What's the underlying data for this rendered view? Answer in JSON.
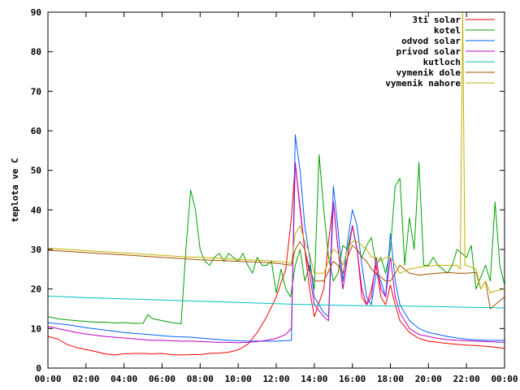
{
  "chart_data": {
    "type": "line",
    "title": "",
    "xlabel": "",
    "ylabel": "teplota ve C",
    "ylim": [
      0,
      90
    ],
    "xlim": [
      "00:00",
      "24:00"
    ],
    "yticks": [
      0,
      10,
      20,
      30,
      40,
      50,
      60,
      70,
      80,
      90
    ],
    "xtick_labels": [
      "00:00",
      "02:00",
      "04:00",
      "06:00",
      "08:00",
      "10:00",
      "12:00",
      "14:00",
      "16:00",
      "18:00",
      "20:00",
      "22:00",
      "00:00"
    ],
    "grid": false,
    "legend_position": "top-right",
    "series": [
      {
        "name": "3ti solar",
        "color": "#ff0000",
        "x": [
          "00:00",
          "00:30",
          "01:00",
          "01:30",
          "02:00",
          "02:30",
          "03:00",
          "03:30",
          "04:00",
          "04:30",
          "05:00",
          "05:30",
          "06:00",
          "06:30",
          "07:00",
          "07:30",
          "08:00",
          "08:30",
          "09:00",
          "09:30",
          "10:00",
          "10:30",
          "11:00",
          "11:30",
          "12:00",
          "12:30",
          "12:48",
          "13:00",
          "13:12",
          "13:30",
          "13:45",
          "14:00",
          "14:30",
          "14:45",
          "15:00",
          "15:15",
          "15:30",
          "15:45",
          "16:00",
          "16:15",
          "16:30",
          "16:45",
          "17:00",
          "17:15",
          "17:30",
          "17:45",
          "18:00",
          "18:15",
          "18:30",
          "19:00",
          "19:30",
          "20:00",
          "20:30",
          "21:00",
          "21:30",
          "22:00",
          "22:30",
          "23:00",
          "23:30",
          "24:00"
        ],
        "y": [
          8,
          7.4,
          6,
          5.2,
          4.7,
          4.2,
          3.6,
          3.3,
          3.6,
          3.7,
          3.7,
          3.6,
          3.7,
          3.4,
          3.3,
          3.4,
          3.4,
          3.7,
          3.8,
          4,
          4.6,
          6,
          9,
          13,
          18,
          25,
          38,
          52,
          43,
          30,
          20,
          13,
          20,
          32,
          42,
          30,
          20,
          28,
          36,
          30,
          18,
          16,
          20,
          26,
          18,
          16,
          21,
          16,
          12,
          9,
          7.5,
          6.8,
          6.5,
          6.2,
          6,
          5.8,
          5.7,
          5.5,
          5.3,
          5
        ]
      },
      {
        "name": "kotel",
        "color": "#00a000",
        "x": [
          "00:00",
          "00:30",
          "01:00",
          "01:30",
          "02:00",
          "02:30",
          "03:00",
          "03:30",
          "04:00",
          "04:30",
          "05:00",
          "05:15",
          "05:30",
          "06:00",
          "06:30",
          "07:00",
          "07:15",
          "07:30",
          "07:45",
          "08:00",
          "08:15",
          "08:30",
          "08:45",
          "09:00",
          "09:15",
          "09:30",
          "09:45",
          "10:00",
          "10:15",
          "10:30",
          "10:45",
          "11:00",
          "11:15",
          "11:30",
          "11:45",
          "12:00",
          "12:15",
          "12:30",
          "12:45",
          "13:00",
          "13:15",
          "13:30",
          "13:45",
          "14:00",
          "14:15",
          "14:30",
          "14:45",
          "15:00",
          "15:15",
          "15:30",
          "15:45",
          "16:00",
          "16:15",
          "16:30",
          "16:45",
          "17:00",
          "17:15",
          "17:30",
          "17:45",
          "18:00",
          "18:15",
          "18:30",
          "18:45",
          "19:00",
          "19:15",
          "19:30",
          "19:45",
          "20:00",
          "20:15",
          "20:30",
          "20:45",
          "21:00",
          "21:15",
          "21:30",
          "21:45",
          "22:00",
          "22:15",
          "22:30",
          "22:45",
          "23:00",
          "23:15",
          "23:30",
          "23:45",
          "24:00"
        ],
        "y": [
          13,
          12.5,
          12.2,
          12,
          11.8,
          11.6,
          11.6,
          11.4,
          11.5,
          11.3,
          11.3,
          13.5,
          12.5,
          12,
          11.5,
          11.2,
          30,
          45,
          40,
          30,
          27,
          26,
          28,
          29,
          27,
          29,
          28,
          27,
          29,
          26,
          24,
          28,
          26,
          26,
          27,
          19,
          25,
          20,
          18,
          26,
          30,
          22,
          26,
          20,
          54,
          40,
          28,
          22,
          24,
          31,
          30,
          36,
          30,
          28,
          31,
          33,
          26,
          28,
          24,
          30,
          46,
          48,
          26,
          38,
          30,
          52,
          26,
          26,
          28,
          26,
          25,
          24,
          26,
          30,
          29,
          28,
          31,
          20,
          23,
          26,
          22,
          42,
          26,
          21
        ]
      },
      {
        "name": "odvod solar",
        "color": "#0060ff",
        "x": [
          "00:00",
          "00:30",
          "01:00",
          "01:30",
          "02:00",
          "02:30",
          "03:00",
          "03:30",
          "04:00",
          "04:30",
          "05:00",
          "05:30",
          "06:00",
          "06:30",
          "07:00",
          "07:30",
          "08:00",
          "08:30",
          "09:00",
          "09:30",
          "10:00",
          "10:30",
          "11:00",
          "11:30",
          "12:00",
          "12:30",
          "12:48",
          "13:00",
          "13:15",
          "13:30",
          "13:45",
          "14:00",
          "14:30",
          "14:45",
          "15:00",
          "15:15",
          "15:30",
          "15:45",
          "16:00",
          "16:15",
          "16:30",
          "16:45",
          "17:00",
          "17:15",
          "17:30",
          "17:45",
          "18:00",
          "18:15",
          "18:30",
          "19:00",
          "19:30",
          "20:00",
          "20:30",
          "21:00",
          "21:30",
          "22:00",
          "22:30",
          "23:00",
          "23:30",
          "24:00"
        ],
        "y": [
          11.5,
          11.2,
          11,
          10.6,
          10.2,
          9.9,
          9.6,
          9.3,
          9,
          8.8,
          8.6,
          8.4,
          8.2,
          8,
          7.9,
          7.8,
          7.6,
          7.4,
          7.2,
          7,
          6.9,
          6.8,
          6.8,
          6.8,
          6.8,
          6.9,
          7,
          59,
          50,
          36,
          28,
          18,
          14,
          13,
          46,
          35,
          22,
          32,
          40,
          36,
          26,
          18,
          16,
          24,
          22,
          18,
          34,
          22,
          16,
          12,
          10,
          9,
          8.5,
          8,
          7.6,
          7.3,
          7.1,
          7,
          7,
          7
        ]
      },
      {
        "name": "privod solar",
        "color": "#c000c0",
        "x": [
          "00:00",
          "00:30",
          "01:00",
          "01:30",
          "02:00",
          "02:30",
          "03:00",
          "03:30",
          "04:00",
          "04:30",
          "05:00",
          "05:30",
          "06:00",
          "06:30",
          "07:00",
          "07:30",
          "08:00",
          "08:30",
          "09:00",
          "09:30",
          "10:00",
          "10:30",
          "11:00",
          "11:30",
          "12:00",
          "12:30",
          "12:48",
          "13:00",
          "13:15",
          "13:30",
          "13:45",
          "14:00",
          "14:30",
          "14:45",
          "15:00",
          "15:15",
          "15:30",
          "15:45",
          "16:00",
          "16:15",
          "16:30",
          "16:45",
          "17:00",
          "17:15",
          "17:30",
          "17:45",
          "18:00",
          "18:15",
          "18:30",
          "19:00",
          "19:30",
          "20:00",
          "20:30",
          "21:00",
          "21:30",
          "22:00",
          "22:30",
          "23:00",
          "23:30",
          "24:00"
        ],
        "y": [
          10.5,
          10,
          9.5,
          9,
          8.6,
          8.3,
          8,
          7.8,
          7.6,
          7.4,
          7.2,
          7,
          7,
          6.9,
          6.8,
          6.8,
          6.7,
          6.6,
          6.5,
          6.5,
          6.4,
          6.5,
          6.7,
          7,
          7.5,
          8.5,
          10,
          52,
          40,
          30,
          24,
          16,
          13,
          12,
          42,
          30,
          20,
          28,
          36,
          30,
          20,
          16,
          18,
          28,
          20,
          18,
          28,
          18,
          14,
          10,
          8.5,
          8,
          7.5,
          7.2,
          7,
          6.9,
          6.8,
          6.7,
          6.6,
          6.5
        ]
      },
      {
        "name": "kutloch",
        "color": "#00c0c0",
        "x": [
          "00:00",
          "02:00",
          "04:00",
          "06:00",
          "08:00",
          "10:00",
          "12:00",
          "14:00",
          "16:00",
          "18:00",
          "20:00",
          "22:00",
          "24:00"
        ],
        "y": [
          18.2,
          17.8,
          17.5,
          17.2,
          16.9,
          16.6,
          16.3,
          16,
          15.8,
          15.7,
          15.6,
          15.4,
          15.2
        ]
      },
      {
        "name": "vymenik dole",
        "color": "#a05000",
        "x": [
          "00:00",
          "01:00",
          "02:00",
          "03:00",
          "04:00",
          "05:00",
          "06:00",
          "07:00",
          "08:00",
          "09:00",
          "10:00",
          "11:00",
          "12:00",
          "12:30",
          "12:48",
          "13:00",
          "13:15",
          "13:30",
          "13:45",
          "14:00",
          "14:30",
          "15:00",
          "15:15",
          "15:30",
          "15:45",
          "16:00",
          "16:15",
          "16:30",
          "16:45",
          "17:00",
          "17:15",
          "17:30",
          "17:45",
          "18:00",
          "18:15",
          "18:30",
          "19:00",
          "19:30",
          "20:00",
          "20:30",
          "21:00",
          "21:30",
          "22:00",
          "22:30",
          "22:45",
          "23:00",
          "23:15",
          "23:30",
          "24:00"
        ],
        "y": [
          29.8,
          29.5,
          29.2,
          28.9,
          28.6,
          28.3,
          28,
          27.7,
          27.4,
          27.2,
          27,
          26.8,
          26.5,
          26.2,
          26,
          30,
          32,
          30,
          25,
          22,
          22,
          27,
          26,
          24,
          28,
          31,
          30,
          28,
          27,
          25,
          24,
          23,
          22,
          22,
          24,
          26,
          24,
          23.5,
          23.8,
          24,
          24.2,
          24,
          24,
          24.2,
          20,
          22,
          15,
          16,
          18
        ]
      },
      {
        "name": "vymenik nahore",
        "color": "#c0b000",
        "x": [
          "00:00",
          "01:00",
          "02:00",
          "03:00",
          "04:00",
          "05:00",
          "06:00",
          "07:00",
          "08:00",
          "09:00",
          "10:00",
          "11:00",
          "12:00",
          "12:30",
          "12:48",
          "13:00",
          "13:15",
          "13:30",
          "13:45",
          "14:00",
          "14:30",
          "15:00",
          "15:15",
          "15:30",
          "15:45",
          "16:00",
          "16:15",
          "16:30",
          "16:45",
          "17:00",
          "17:15",
          "17:30",
          "17:45",
          "18:00",
          "18:15",
          "18:30",
          "19:00",
          "19:30",
          "20:00",
          "20:30",
          "21:00",
          "21:30",
          "21:40",
          "21:48",
          "21:55",
          "22:00",
          "22:15",
          "22:30",
          "22:45",
          "23:00",
          "23:15",
          "23:30",
          "24:00"
        ],
        "y": [
          30.3,
          30,
          29.7,
          29.4,
          29.1,
          28.8,
          28.5,
          28.2,
          28,
          27.8,
          27.5,
          27.3,
          27,
          26.8,
          26.5,
          34,
          36,
          32,
          29,
          24,
          24,
          30,
          29,
          26,
          30,
          32,
          32,
          31,
          30,
          28,
          28,
          27,
          28,
          28,
          26,
          24,
          25,
          25.5,
          25.8,
          26,
          26,
          26,
          25,
          90,
          26,
          26,
          25.5,
          25,
          20,
          22,
          19,
          19.5,
          20
        ]
      }
    ]
  }
}
